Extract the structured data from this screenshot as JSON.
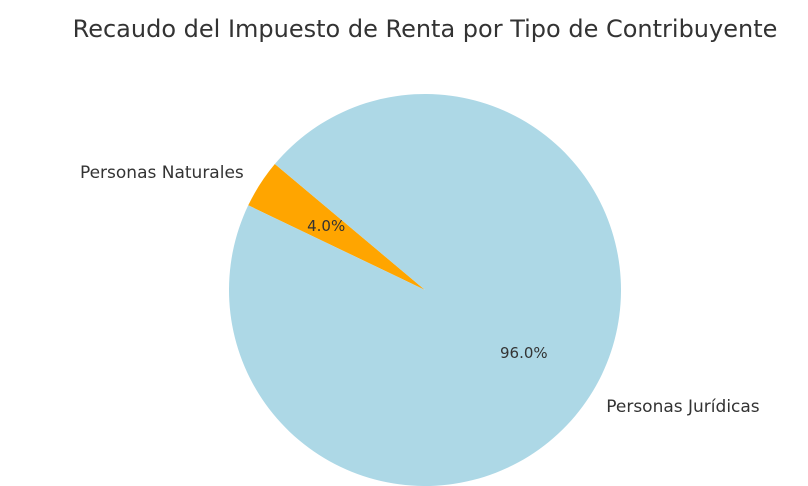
{
  "chart_data": {
    "type": "pie",
    "title": "Recaudo del Impuesto de Renta por Tipo de Contribuyente",
    "categories": [
      "Personas Naturales",
      "Personas Jurídicas"
    ],
    "values": [
      4.0,
      96.0
    ],
    "value_labels": [
      "4.0%",
      "96.0%"
    ],
    "colors": [
      "#ffa500",
      "#add8e6"
    ]
  }
}
